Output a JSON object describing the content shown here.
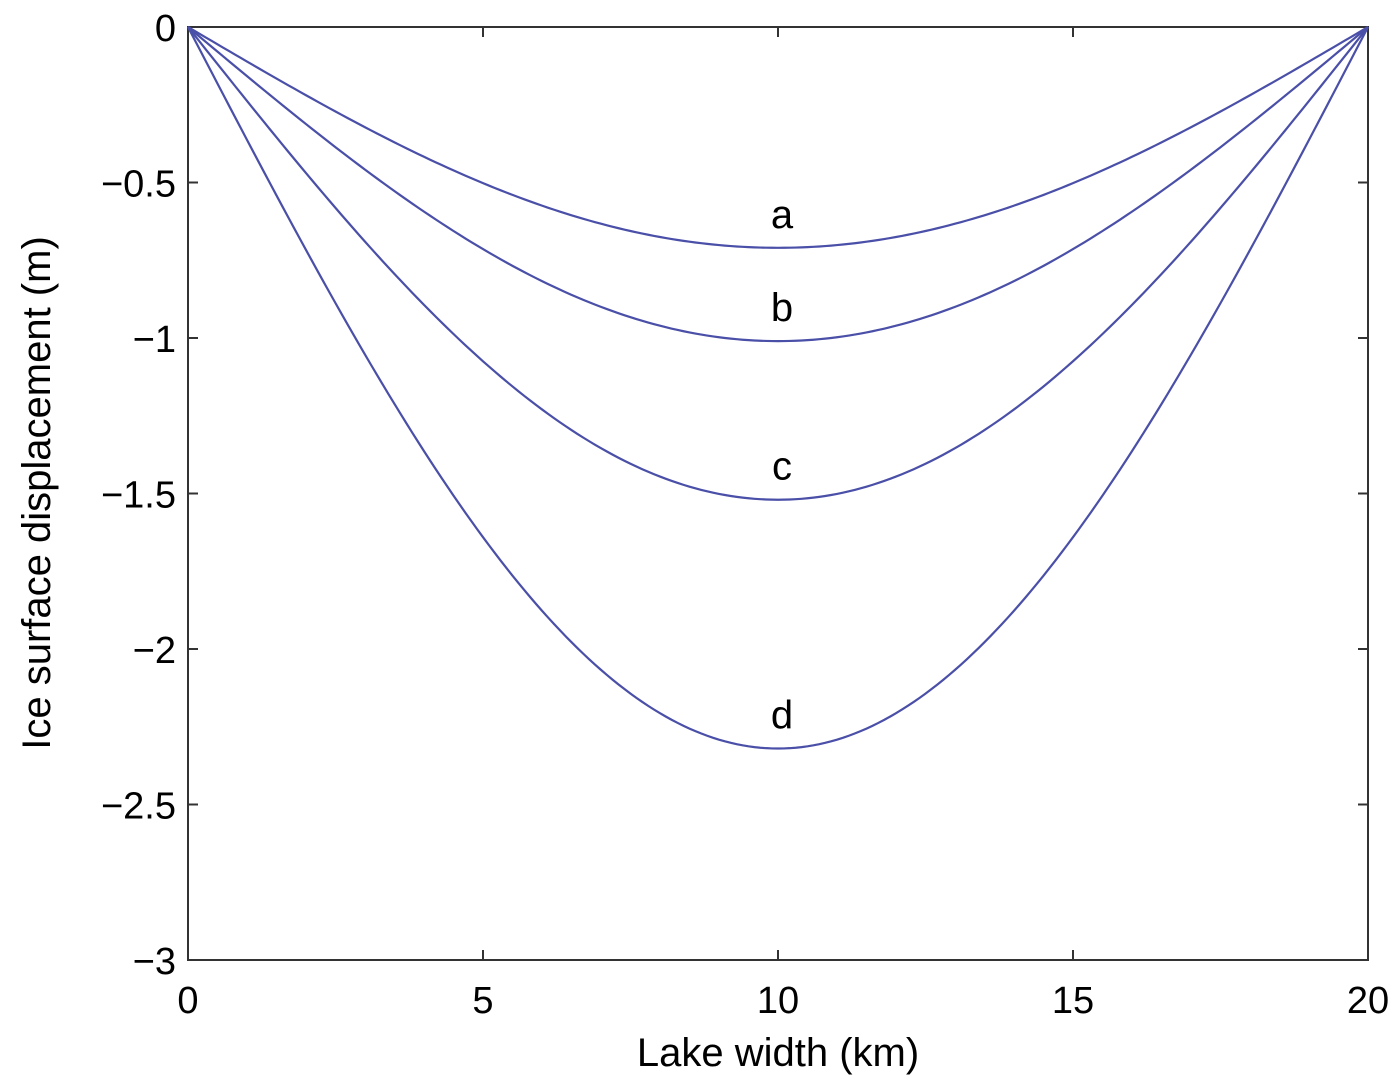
{
  "chart_data": {
    "type": "line",
    "title": "",
    "xlabel": "Lake width (km)",
    "ylabel": "Ice surface displacement (m)",
    "xlim": [
      0,
      20
    ],
    "ylim": [
      -3,
      0
    ],
    "xticks": [
      0,
      5,
      10,
      15,
      20
    ],
    "xtick_labels": [
      "0",
      "5",
      "10",
      "15",
      "20"
    ],
    "yticks": [
      0,
      -0.5,
      -1,
      -1.5,
      -2,
      -2.5,
      -3
    ],
    "ytick_labels": [
      "0",
      "−0.5",
      "−1",
      "−1.5",
      "−2",
      "−2.5",
      "−3"
    ],
    "grid": false,
    "line_color": "#4a4fa8",
    "series": [
      {
        "name": "a",
        "x": [
          0,
          2.5,
          5,
          7.5,
          10,
          12.5,
          15,
          17.5,
          20
        ],
        "values": [
          0,
          -0.36,
          -0.56,
          -0.67,
          -0.71,
          -0.67,
          -0.56,
          -0.36,
          0
        ],
        "min_value": -0.71
      },
      {
        "name": "b",
        "x": [
          0,
          2.5,
          5,
          7.5,
          10,
          12.5,
          15,
          17.5,
          20
        ],
        "values": [
          0,
          -0.55,
          -0.83,
          -0.97,
          -1.01,
          -0.97,
          -0.83,
          -0.55,
          0
        ],
        "min_value": -1.01
      },
      {
        "name": "c",
        "x": [
          0,
          2.5,
          5,
          7.5,
          10,
          12.5,
          15,
          17.5,
          20
        ],
        "values": [
          0,
          -0.88,
          -1.27,
          -1.46,
          -1.52,
          -1.46,
          -1.27,
          -0.88,
          0
        ],
        "min_value": -1.52
      },
      {
        "name": "d",
        "x": [
          0,
          2.5,
          5,
          7.5,
          10,
          12.5,
          15,
          17.5,
          20
        ],
        "values": [
          0,
          -1.22,
          -1.85,
          -2.2,
          -2.32,
          -2.2,
          -1.85,
          -1.22,
          0
        ],
        "min_value": -2.32
      }
    ]
  }
}
